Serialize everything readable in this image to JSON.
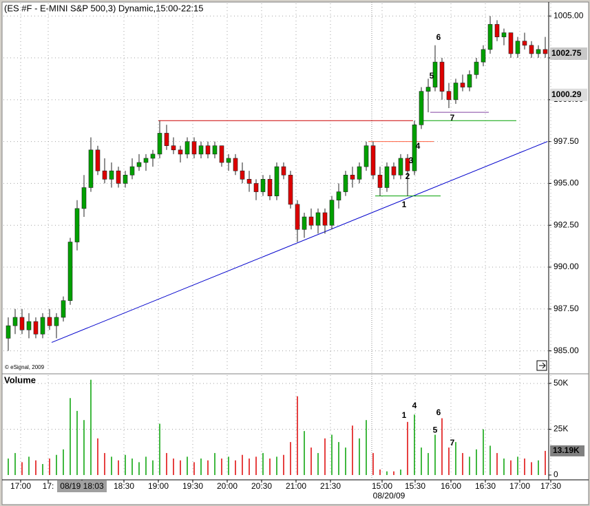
{
  "chart_data": {
    "type": "candlestick",
    "title": "(ES #F - E-MINI S&P 500,3) Dynamic,15:00-22:15",
    "watermark": "© eSignal, 2009",
    "up_color": "#00a000",
    "down_color": "#dd0000",
    "grid": true,
    "xlim": [
      -1.2,
      78.5
    ],
    "xticks": [
      {
        "value": 1.8,
        "label": "17:00"
      },
      {
        "value": 5.8,
        "label": "17:"
      },
      {
        "value": 10.7,
        "label": "08/19 18:03",
        "highlight": true
      },
      {
        "value": 16.8,
        "label": "18:30"
      },
      {
        "value": 21.8,
        "label": "19:00"
      },
      {
        "value": 26.8,
        "label": "19:30"
      },
      {
        "value": 31.8,
        "label": "20:00"
      },
      {
        "value": 36.8,
        "label": "20:30"
      },
      {
        "value": 41.8,
        "label": "21:00"
      },
      {
        "value": 46.8,
        "label": "21:30"
      },
      {
        "value": 54.3,
        "label": "15:00"
      },
      {
        "value": 59.1,
        "label": "15:30"
      },
      {
        "value": 64.3,
        "label": "16:00"
      },
      {
        "value": 69.3,
        "label": "16:30"
      },
      {
        "value": 74.3,
        "label": "17:00"
      },
      {
        "value": 78.8,
        "label": "17:30"
      }
    ],
    "date_label": "08/20/09",
    "ylim": [
      983.75,
      1005.75
    ],
    "yticks": [
      {
        "value": 985,
        "label": "985.00"
      },
      {
        "value": 987.5,
        "label": "987.50"
      },
      {
        "value": 990,
        "label": "990.00"
      },
      {
        "value": 992.5,
        "label": "992.50"
      },
      {
        "value": 995,
        "label": "995.00"
      },
      {
        "value": 997.5,
        "label": "997.50"
      },
      {
        "value": 1000,
        "label": "1000.00"
      },
      {
        "value": 1002.5,
        "label": "1002.50"
      },
      {
        "value": 1005,
        "label": "1005.00"
      }
    ],
    "price_markers": [
      {
        "value": 1002.75,
        "color": "#c8c8c8"
      },
      {
        "value": 1000.29,
        "color": "#dcdcdc"
      }
    ],
    "open": [
      985.75,
      986.5,
      987.0,
      986.25,
      986.75,
      986.0,
      987.0,
      986.5,
      987.0,
      988.0,
      991.5,
      993.5,
      994.75,
      997.0,
      995.75,
      995.25,
      995.75,
      995.0,
      995.5,
      996.0,
      996.25,
      996.5,
      996.75,
      998.0,
      997.25,
      997.0,
      996.75,
      997.5,
      996.75,
      997.25,
      996.75,
      997.25,
      996.25,
      996.5,
      995.75,
      995.25,
      995.0,
      994.5,
      995.25,
      994.25,
      996.0,
      995.5,
      993.75,
      992.25,
      993.0,
      992.5,
      993.25,
      992.5,
      994.0,
      994.5,
      995.5,
      995.25,
      996.0,
      997.25,
      995.5,
      994.75,
      996.0,
      995.5,
      996.5,
      995.75,
      998.5,
      1000.5,
      1000.75,
      1002.25,
      1000.5,
      1000.0,
      1001.0,
      1000.75,
      1001.5,
      1002.25,
      1003.0,
      1004.5,
      1003.75,
      1004.0,
      1002.75,
      1003.5,
      1003.25,
      1002.75,
      1003.0
    ],
    "high": [
      987.0,
      987.5,
      987.5,
      987.25,
      987.0,
      987.25,
      987.5,
      987.25,
      988.25,
      991.75,
      994.0,
      995.5,
      997.75,
      997.25,
      996.5,
      996.25,
      996.0,
      995.75,
      996.5,
      996.75,
      996.75,
      997.0,
      998.75,
      998.5,
      997.75,
      997.25,
      997.75,
      997.75,
      997.5,
      997.5,
      997.5,
      997.25,
      996.75,
      996.75,
      996.25,
      995.75,
      995.25,
      995.5,
      995.5,
      996.25,
      996.25,
      995.75,
      994.0,
      993.25,
      993.5,
      993.5,
      993.5,
      994.25,
      995.0,
      995.75,
      996.0,
      996.25,
      997.5,
      997.5,
      996.0,
      996.25,
      996.25,
      996.75,
      996.75,
      998.75,
      1000.75,
      1001.25,
      1003.25,
      1002.5,
      1001.0,
      1001.25,
      1001.5,
      1001.75,
      1002.5,
      1003.25,
      1005.0,
      1004.75,
      1004.25,
      1004.0,
      1003.75,
      1004.0,
      1003.5,
      1003.25,
      1003.75
    ],
    "low": [
      985.0,
      986.0,
      986.0,
      985.75,
      985.75,
      985.75,
      986.25,
      985.75,
      986.75,
      987.75,
      991.0,
      993.0,
      994.5,
      995.5,
      995.0,
      994.75,
      994.75,
      994.75,
      995.25,
      995.75,
      995.75,
      996.0,
      996.5,
      997.0,
      996.75,
      996.25,
      996.5,
      996.5,
      996.5,
      996.5,
      996.5,
      996.0,
      995.75,
      995.5,
      995.0,
      994.5,
      994.0,
      994.25,
      994.0,
      994.0,
      995.25,
      993.5,
      991.5,
      991.75,
      992.25,
      992.0,
      992.0,
      992.25,
      993.5,
      994.25,
      994.75,
      995.0,
      995.75,
      995.25,
      994.25,
      994.5,
      995.25,
      995.25,
      994.25,
      995.5,
      998.25,
      999.25,
      1000.5,
      1000.0,
      999.5,
      999.75,
      1000.5,
      1000.5,
      1001.25,
      1002.0,
      1002.75,
      1003.5,
      1003.25,
      1002.5,
      1002.5,
      1003.0,
      1002.5,
      1002.5,
      1002.5
    ],
    "close": [
      986.5,
      987.0,
      986.25,
      986.75,
      986.0,
      987.0,
      986.5,
      987.0,
      988.0,
      991.5,
      993.5,
      994.75,
      997.0,
      995.75,
      995.25,
      995.75,
      995.0,
      995.5,
      996.0,
      996.25,
      996.5,
      996.75,
      998.0,
      997.25,
      997.0,
      996.75,
      997.5,
      996.75,
      997.25,
      996.75,
      997.25,
      996.25,
      996.5,
      995.75,
      995.25,
      995.0,
      994.5,
      995.25,
      994.25,
      996.0,
      995.5,
      993.75,
      992.25,
      993.0,
      992.5,
      993.25,
      992.5,
      994.0,
      994.5,
      995.5,
      995.25,
      996.0,
      997.25,
      995.5,
      994.75,
      996.0,
      995.5,
      996.5,
      995.75,
      998.5,
      1000.5,
      1000.75,
      1002.25,
      1000.5,
      1000.0,
      1001.0,
      1000.75,
      1001.5,
      1002.25,
      1003.0,
      1004.5,
      1003.75,
      1004.0,
      1002.75,
      1003.5,
      1003.25,
      1002.75,
      1003.0,
      1002.75
    ],
    "lines": [
      {
        "x": [
          6.3,
          78.3
        ],
        "y": [
          985.5,
          997.5
        ],
        "color": "#0000cc"
      },
      {
        "x": [
          21.8,
          58.8
        ],
        "y": [
          998.75,
          998.75
        ],
        "color": "#cc0000"
      },
      {
        "x": [
          52.3,
          61.8
        ],
        "y": [
          997.5,
          997.5
        ],
        "color": "#ff6040"
      },
      {
        "x": [
          53.3,
          62.8
        ],
        "y": [
          994.25,
          994.25
        ],
        "color": "#00a000"
      },
      {
        "x": [
          61.3,
          69.8
        ],
        "y": [
          999.25,
          999.25
        ],
        "color": "#8040a0"
      },
      {
        "x": [
          59.8,
          73.8
        ],
        "y": [
          998.75,
          998.75
        ],
        "color": "#00a000"
      }
    ],
    "annotations": [
      {
        "text": "1",
        "x": 57.5,
        "y": 993.7
      },
      {
        "text": "2",
        "x": 58.0,
        "y": 995.4
      },
      {
        "text": "3",
        "x": 58.5,
        "y": 996.35
      },
      {
        "text": "4",
        "x": 59.5,
        "y": 997.2
      },
      {
        "text": "5",
        "x": 61.5,
        "y": 1001.4
      },
      {
        "text": "6",
        "x": 62.5,
        "y": 1003.7
      },
      {
        "text": "7",
        "x": 64.5,
        "y": 998.9
      }
    ],
    "volume": {
      "label": "Volume",
      "label_color": "#00a000",
      "values": [
        9,
        12,
        7,
        10,
        8,
        6,
        9,
        11,
        14,
        42,
        35,
        30,
        52,
        20,
        12,
        10,
        8,
        11,
        9,
        7,
        10,
        8,
        28,
        12,
        9,
        8,
        10,
        7,
        9,
        8,
        12,
        9,
        10,
        8,
        11,
        9,
        10,
        12,
        9,
        10,
        11,
        18,
        43,
        24,
        15,
        12,
        20,
        22,
        18,
        15,
        27,
        20,
        30,
        12,
        3,
        2,
        2,
        3,
        29,
        33,
        15,
        12,
        22,
        31,
        15,
        18,
        12,
        10,
        14,
        25,
        16,
        12,
        9,
        8,
        10,
        9,
        7,
        8,
        13.19
      ],
      "ylim": [
        0,
        54.5
      ],
      "yticks": [
        {
          "value": 0,
          "label": "0"
        },
        {
          "value": 25,
          "label": "25K"
        },
        {
          "value": 50,
          "label": "50K"
        }
      ],
      "last": {
        "value": 13.19,
        "label": "13.19K"
      },
      "annotations": [
        {
          "text": "1",
          "x": 57.5,
          "y": 32.3
        },
        {
          "text": "4",
          "x": 59.0,
          "y": 37.6
        },
        {
          "text": "6",
          "x": 62.5,
          "y": 33.8
        },
        {
          "text": "5",
          "x": 62.0,
          "y": 24.4
        },
        {
          "text": "7",
          "x": 64.5,
          "y": 17.3
        }
      ]
    }
  }
}
